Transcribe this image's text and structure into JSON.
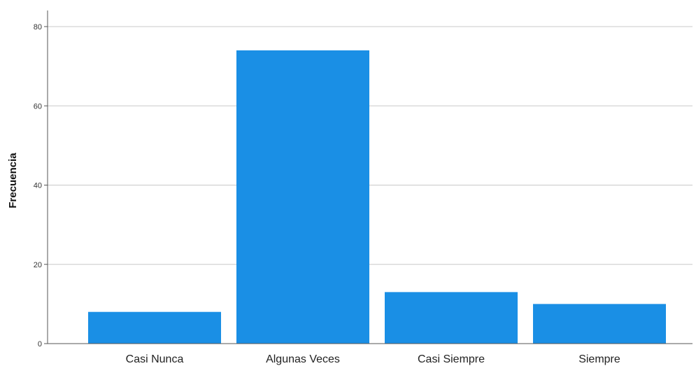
{
  "chart_data": {
    "type": "bar",
    "title": "",
    "xlabel": "",
    "ylabel": "Frecuencia",
    "categories": [
      "Casi Nunca",
      "Algunas Veces",
      "Casi Siempre",
      "Siempre"
    ],
    "values": [
      8,
      74,
      13,
      10
    ],
    "ylim": [
      0,
      84
    ],
    "yticks": [
      0,
      20,
      40,
      60,
      80
    ],
    "grid": true,
    "legend": "none",
    "bar_color": "#1a8fe5",
    "grid_color": "#c8c8c8",
    "axis_color": "#555555"
  }
}
